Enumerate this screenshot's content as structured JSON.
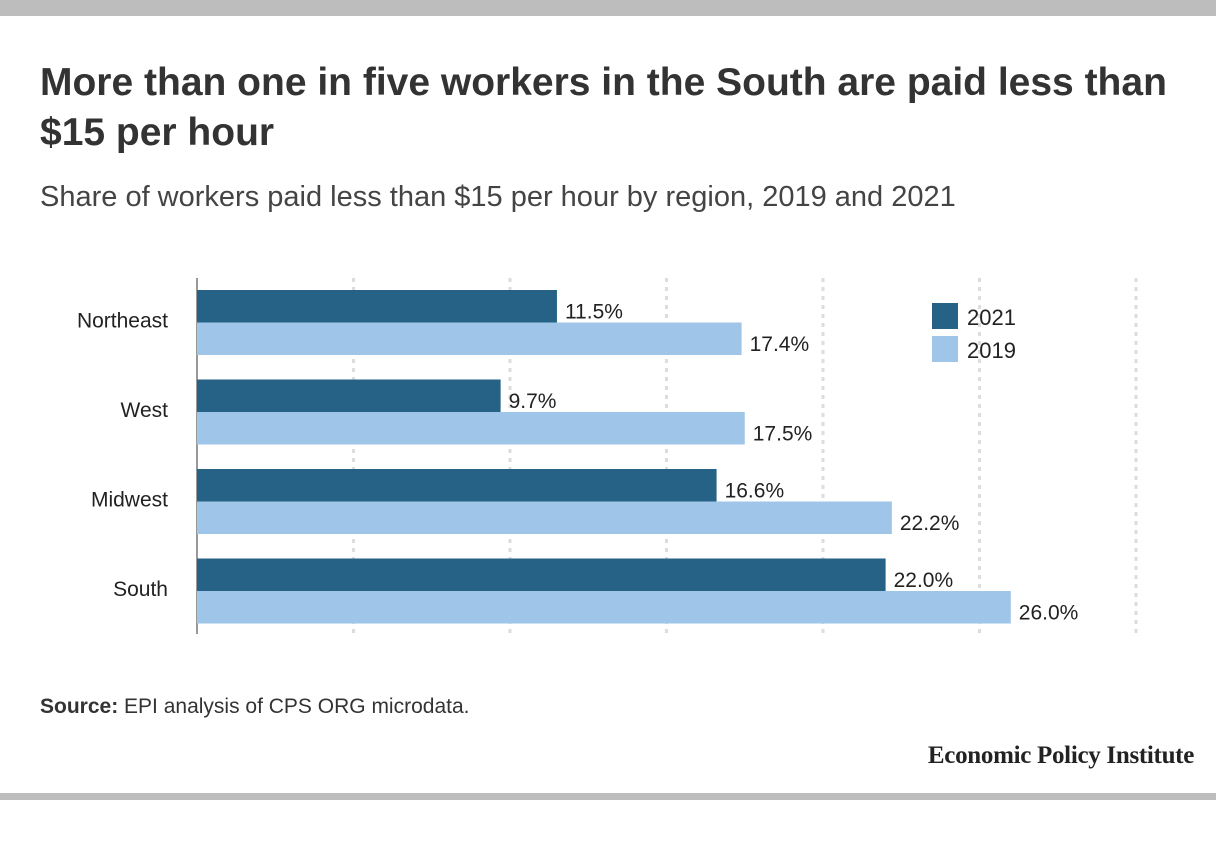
{
  "title": "More than one in five workers in the South are paid less than $15 per hour",
  "subtitle": "Share of workers paid less than $15 per hour by region, 2019 and 2021",
  "source_label": "Source:",
  "source_text": " EPI analysis of CPS ORG microdata.",
  "brand": "Economic Policy Institute",
  "colors": {
    "series_2021": "#266285",
    "series_2019": "#9fc6e8",
    "grid": "#dddddd",
    "axis": "#999999"
  },
  "chart_data": {
    "type": "bar",
    "orientation": "horizontal",
    "categories": [
      "Northeast",
      "West",
      "Midwest",
      "South"
    ],
    "series": [
      {
        "name": "2021",
        "values": [
          11.5,
          9.7,
          16.6,
          22.0
        ],
        "labels": [
          "11.5%",
          "9.7%",
          "16.6%",
          "22.0%"
        ]
      },
      {
        "name": "2019",
        "values": [
          17.4,
          17.5,
          22.2,
          26.0
        ],
        "labels": [
          "17.4%",
          "17.5%",
          "22.2%",
          "26.0%"
        ]
      }
    ],
    "xlim": [
      0,
      30
    ],
    "gridlines": [
      5,
      10,
      15,
      20,
      25,
      30
    ],
    "grid": true,
    "legend": "top-right"
  }
}
